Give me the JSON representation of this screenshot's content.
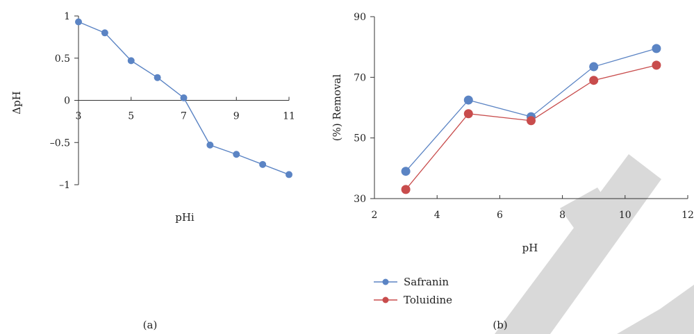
{
  "chart_data": [
    {
      "type": "line",
      "panel_label": "(a)",
      "xlabel": "pHi",
      "ylabel": "ΔpH",
      "xlim": [
        3,
        11
      ],
      "ylim": [
        -1,
        1
      ],
      "x_ticks": [
        "3",
        "5",
        "7",
        "9",
        "11"
      ],
      "y_ticks": [
        "1",
        "0.5",
        "0",
        "–0.5",
        "–1"
      ],
      "grid": false,
      "color": "#5b84c4",
      "x": [
        3,
        4,
        5,
        6,
        7,
        8,
        9,
        10,
        11
      ],
      "y": [
        0.93,
        0.8,
        0.47,
        0.27,
        0.03,
        -0.53,
        -0.64,
        -0.76,
        -0.88
      ]
    },
    {
      "type": "line",
      "panel_label": "(b)",
      "xlabel": "pH",
      "ylabel": "(%) Removal",
      "xlim": [
        2,
        12
      ],
      "ylim": [
        30,
        90
      ],
      "x_ticks": [
        "2",
        "4",
        "6",
        "8",
        "10",
        "12"
      ],
      "y_ticks": [
        "90",
        "70",
        "50",
        "30"
      ],
      "grid": false,
      "legend_position": "bottom-left",
      "x": [
        3,
        5,
        7,
        9,
        11
      ],
      "series": [
        {
          "name": "Safranin",
          "color": "#5b84c4",
          "values": [
            39,
            62.5,
            57,
            73.5,
            79.5
          ]
        },
        {
          "name": "Toluidine",
          "color": "#c84c4c",
          "values": [
            33,
            58,
            55.7,
            69,
            74
          ]
        }
      ]
    }
  ],
  "watermark": "DRAFT"
}
